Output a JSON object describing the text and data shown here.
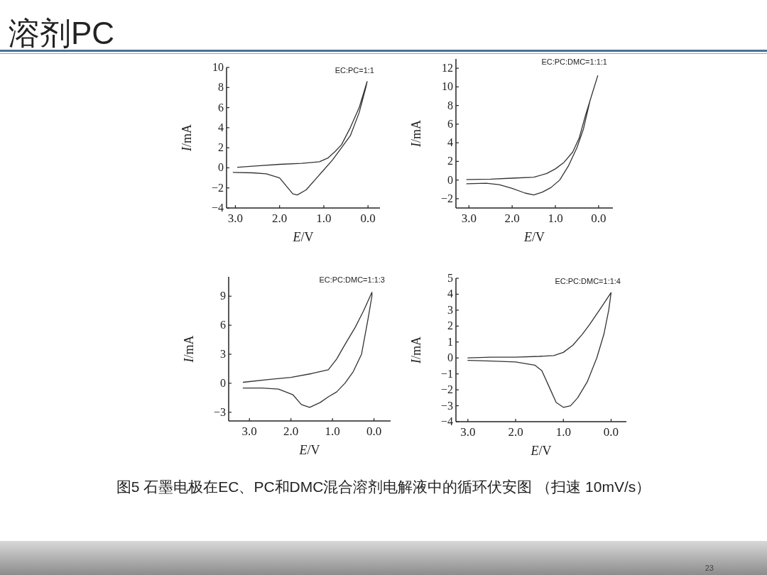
{
  "chart_data": [
    {
      "type": "line",
      "title": "溶剂PC",
      "xlabel": "*E*/V",
      "ylabel": "*I*/mA",
      "xlim": [
        3.2,
        -0.27
      ],
      "ylim": [
        -4,
        10
      ],
      "xticks": [
        {
          "value": 3,
          "label": "3.0"
        },
        {
          "value": 2,
          "label": "2.0"
        },
        {
          "value": 1,
          "label": "1.0"
        },
        {
          "value": 0,
          "label": "0.0"
        }
      ],
      "yticks": [
        -4,
        -2,
        0,
        2,
        4,
        6,
        8,
        10
      ],
      "annotations": [
        "EC:PC=1:1"
      ],
      "series": [
        {
          "color": "#333333",
          "x": [
            2.95,
            2.5,
            2.0,
            1.5,
            1.1,
            0.9,
            0.75,
            0.6,
            0.4,
            0.2,
            0.02,
            0.05,
            0.2,
            0.4,
            0.6,
            0.8,
            1.0,
            1.2,
            1.4,
            1.6,
            1.7,
            1.85,
            2.0,
            2.3,
            2.6,
            3.05
          ],
          "values": [
            0.05,
            0.2,
            0.35,
            0.45,
            0.6,
            1.0,
            1.6,
            2.3,
            4,
            6,
            8.6,
            8.0,
            5.5,
            3.2,
            2.0,
            0.8,
            -0.2,
            -1.2,
            -2.2,
            -2.7,
            -2.6,
            -1.8,
            -1.0,
            -0.6,
            -0.5,
            -0.45
          ]
        }
      ]
    },
    {
      "type": "line",
      "xlabel": "*E*/V",
      "ylabel": "*I*/mA",
      "xlim": [
        3.3,
        -0.33
      ],
      "ylim": [
        -3,
        13
      ],
      "xticks": [
        {
          "value": 3,
          "label": "3.0"
        },
        {
          "value": 2,
          "label": "2.0"
        },
        {
          "value": 1,
          "label": "1.0"
        },
        {
          "value": 0,
          "label": "0.0"
        }
      ],
      "yticks": [
        -2,
        0,
        2,
        4,
        6,
        8,
        10,
        12
      ],
      "annotations": [
        "EC:PC:DMC=1:1:1"
      ],
      "series": [
        {
          "color": "#333333",
          "x": [
            3.05,
            2.5,
            2.0,
            1.5,
            1.2,
            1.0,
            0.8,
            0.6,
            0.45,
            0.3,
            0.1,
            0.02,
            0.2,
            0.35,
            0.5,
            0.7,
            0.9,
            1.1,
            1.3,
            1.5,
            1.7,
            2.0,
            2.3,
            2.6,
            3.05
          ],
          "values": [
            0.05,
            0.1,
            0.2,
            0.3,
            0.7,
            1.2,
            1.9,
            3.0,
            4.5,
            7,
            10,
            11.2,
            8.5,
            5.5,
            3.5,
            1.5,
            0.0,
            -0.8,
            -1.3,
            -1.6,
            -1.4,
            -0.9,
            -0.5,
            -0.35,
            -0.4
          ]
        }
      ]
    },
    {
      "type": "line",
      "xlabel": "*E*/V",
      "ylabel": "*I*/mA",
      "xlim": [
        3.5,
        -0.4
      ],
      "ylim": [
        -3.9,
        11
      ],
      "xticks": [
        {
          "value": 3,
          "label": "3.0"
        },
        {
          "value": 2,
          "label": "2.0"
        },
        {
          "value": 1,
          "label": "1.0"
        },
        {
          "value": 0,
          "label": "0.0"
        }
      ],
      "yticks": [
        -3,
        0,
        3,
        6,
        9
      ],
      "annotations": [
        "EC:PC:DMC=1:1:3"
      ],
      "series": [
        {
          "color": "#333333",
          "x": [
            3.15,
            2.5,
            2.0,
            1.5,
            1.1,
            0.9,
            0.7,
            0.45,
            0.25,
            0.05,
            0.05,
            0.15,
            0.3,
            0.5,
            0.7,
            0.9,
            1.1,
            1.3,
            1.55,
            1.75,
            1.95,
            2.3,
            2.7,
            3.15
          ],
          "values": [
            0.1,
            0.4,
            0.6,
            1.0,
            1.4,
            2.5,
            4.0,
            5.8,
            7.5,
            9.4,
            9.0,
            6.5,
            3.0,
            1.2,
            0.0,
            -0.9,
            -1.4,
            -2.0,
            -2.5,
            -2.2,
            -1.2,
            -0.6,
            -0.5,
            -0.5
          ]
        }
      ]
    },
    {
      "type": "line",
      "xlabel": "*E*/V",
      "ylabel": "*I*/mA",
      "xlim": [
        3.25,
        -0.32
      ],
      "ylim": [
        -4,
        5
      ],
      "xticks": [
        {
          "value": 3,
          "label": "3.0"
        },
        {
          "value": 2,
          "label": "2.0"
        },
        {
          "value": 1,
          "label": "1.0"
        },
        {
          "value": 0,
          "label": "0.0"
        }
      ],
      "yticks": [
        -4,
        -3,
        -2,
        -1,
        0,
        1,
        2,
        3,
        4,
        5
      ],
      "annotations": [
        "EC:PC:DMC=1:1:4",
        "图5 石墨电极在EC、PC和DMC混合溶剂电解液中的循环伏安图 （扫速 10mV/s）",
        "23"
      ],
      "series": [
        {
          "color": "#333333",
          "x": [
            3.0,
            2.5,
            2.0,
            1.5,
            1.2,
            1.0,
            0.8,
            0.6,
            0.45,
            0.2,
            0.0,
            0.05,
            0.15,
            0.3,
            0.5,
            0.7,
            0.85,
            1.0,
            1.15,
            1.3,
            1.45,
            1.6,
            2.0,
            2.5,
            3.0
          ],
          "values": [
            0.0,
            0.05,
            0.05,
            0.1,
            0.15,
            0.35,
            0.8,
            1.5,
            2.1,
            3.2,
            4.1,
            3.0,
            1.5,
            0.0,
            -1.5,
            -2.5,
            -3.0,
            -3.1,
            -2.8,
            -1.8,
            -0.8,
            -0.45,
            -0.25,
            -0.2,
            -0.15
          ]
        }
      ]
    }
  ]
}
